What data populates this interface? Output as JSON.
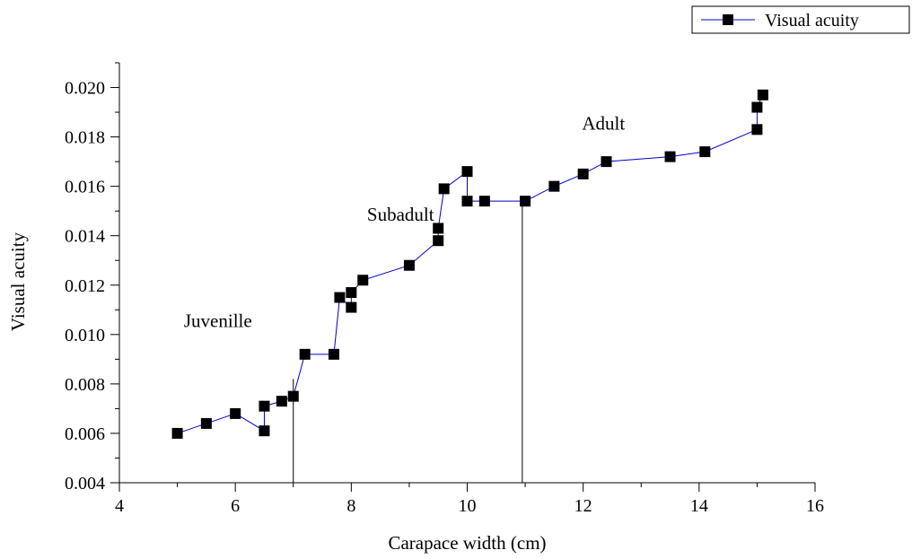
{
  "chart_data": {
    "type": "scatter",
    "title": "",
    "xlabel": "Carapace width (cm)",
    "ylabel": "Visual acuity",
    "xlim": [
      4,
      16
    ],
    "ylim": [
      0.004,
      0.021
    ],
    "xticks": [
      4,
      6,
      8,
      10,
      12,
      14,
      16
    ],
    "yticks": [
      0.004,
      0.006,
      0.008,
      0.01,
      0.012,
      0.014,
      0.016,
      0.018,
      0.02
    ],
    "xtick_labels": [
      "4",
      "6",
      "8",
      "10",
      "12",
      "14",
      "16"
    ],
    "ytick_labels": [
      "0.004",
      "0.006",
      "0.008",
      "0.010",
      "0.012",
      "0.014",
      "0.016",
      "0.018",
      "0.020"
    ],
    "grid": false,
    "legend": {
      "position": "top-right",
      "entries": [
        "Visual acuity"
      ]
    },
    "series": [
      {
        "name": "Visual acuity",
        "color": "#0000cc",
        "marker": "square",
        "x": [
          5.0,
          5.5,
          6.0,
          6.5,
          6.5,
          6.8,
          7.0,
          7.2,
          7.7,
          7.8,
          8.0,
          8.0,
          8.2,
          9.0,
          9.5,
          9.5,
          9.6,
          10.0,
          10.0,
          10.3,
          11.0,
          11.5,
          12.0,
          12.4,
          13.5,
          14.1,
          15.0,
          15.0,
          15.1
        ],
        "y": [
          0.006,
          0.0064,
          0.0068,
          0.0061,
          0.0071,
          0.0073,
          0.0075,
          0.0092,
          0.0092,
          0.0115,
          0.0111,
          0.0117,
          0.0122,
          0.0128,
          0.0138,
          0.0143,
          0.0159,
          0.0166,
          0.0154,
          0.0154,
          0.0154,
          0.016,
          0.0165,
          0.017,
          0.0172,
          0.0174,
          0.0183,
          0.0192,
          0.0197
        ]
      }
    ],
    "vertical_lines": [
      {
        "x": 7.0,
        "y_top": 0.0082
      },
      {
        "x": 10.95,
        "y_top": 0.0154
      }
    ],
    "annotations": [
      {
        "text": "Juvenille",
        "x": 5.7,
        "y": 0.0103
      },
      {
        "text": "Subadult",
        "x": 8.85,
        "y": 0.0146
      },
      {
        "text": "Adult",
        "x": 12.35,
        "y": 0.0183
      }
    ]
  }
}
